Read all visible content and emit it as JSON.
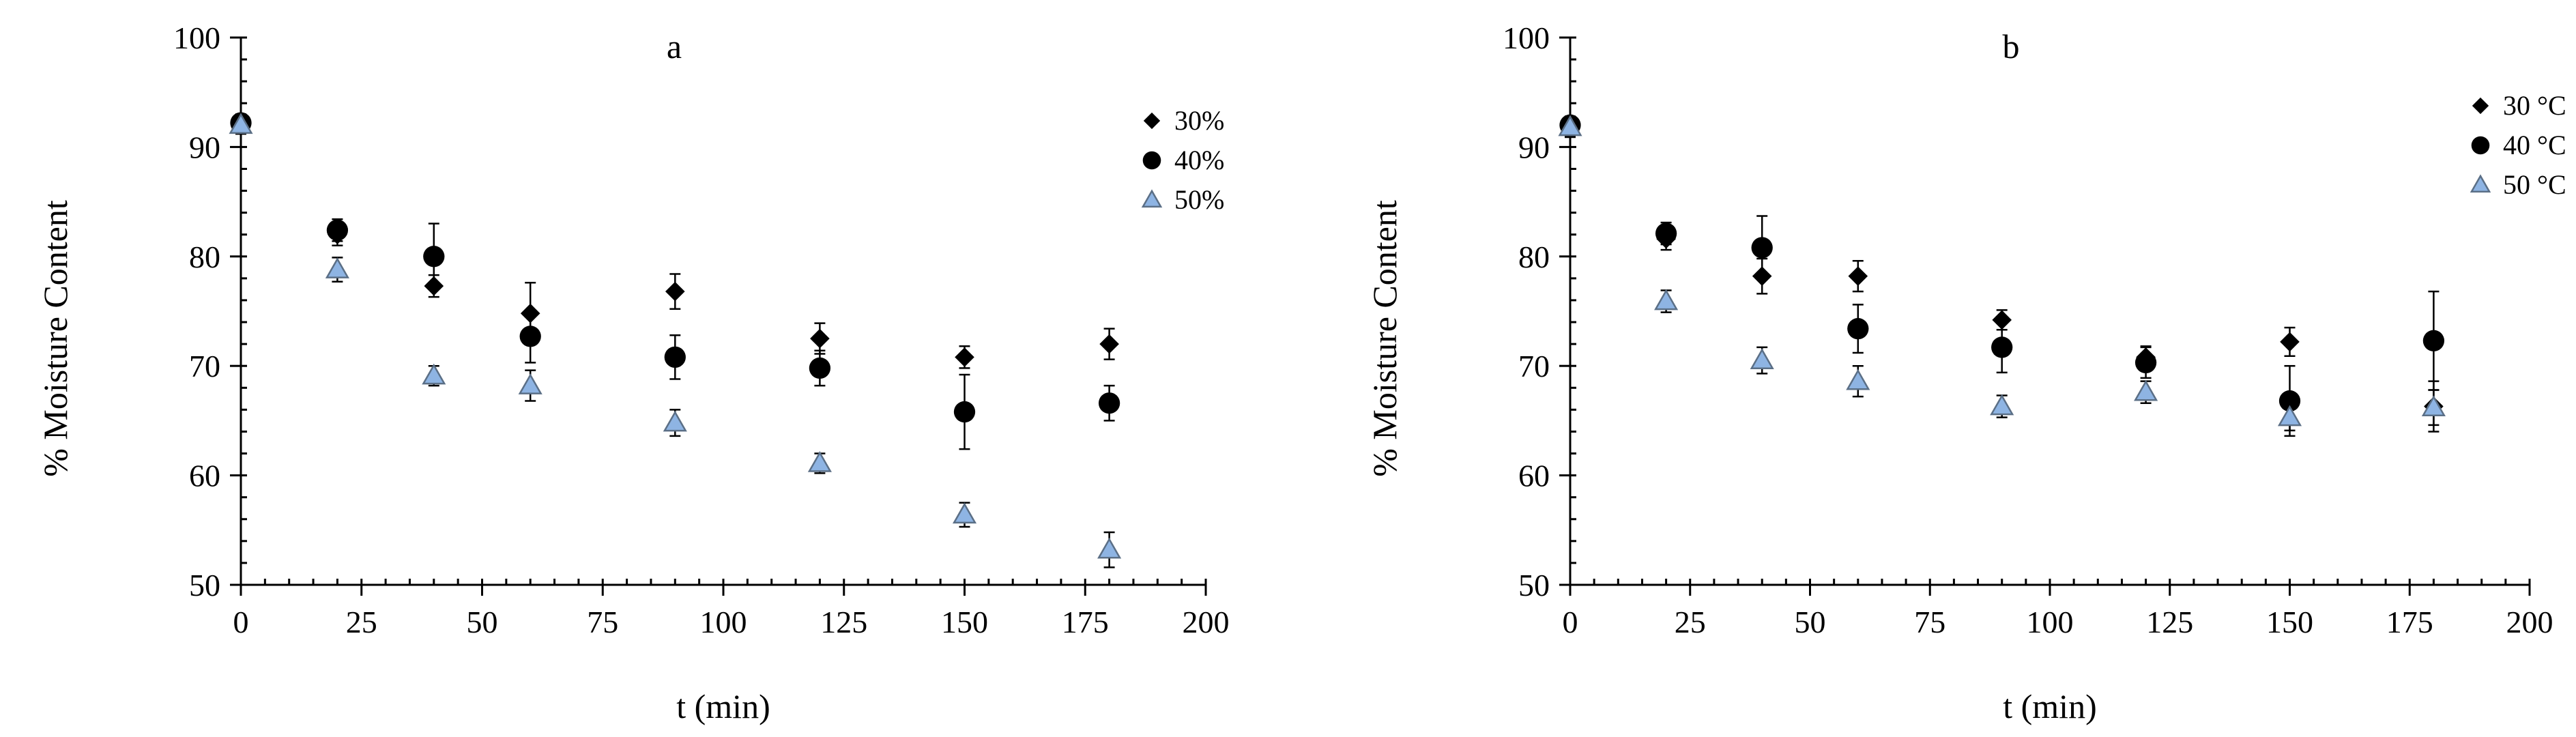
{
  "chart_data": [
    {
      "type": "scatter",
      "title": "a",
      "xlabel": "t (min)",
      "ylabel": "% Moisture Content",
      "xlim": [
        0,
        200
      ],
      "ylim": [
        50,
        100
      ],
      "xticks": [
        0,
        25,
        50,
        75,
        100,
        125,
        150,
        175,
        200
      ],
      "yticks": [
        50,
        60,
        70,
        80,
        90,
        100
      ],
      "legend_position": "top-right",
      "grid": false,
      "series": [
        {
          "name": "30%",
          "marker": "diamond",
          "color": "#000000",
          "points": [
            {
              "x": 0,
              "y": 92.0,
              "err": 0.8
            },
            {
              "x": 20,
              "y": 82.0,
              "err": 1.0
            },
            {
              "x": 40,
              "y": 77.3,
              "err": 1.0
            },
            {
              "x": 60,
              "y": 74.8,
              "err": 2.8
            },
            {
              "x": 90,
              "y": 76.8,
              "err": 1.6
            },
            {
              "x": 120,
              "y": 72.5,
              "err": 1.4
            },
            {
              "x": 150,
              "y": 70.8,
              "err": 1.0
            },
            {
              "x": 180,
              "y": 72.0,
              "err": 1.4
            }
          ]
        },
        {
          "name": "40%",
          "marker": "circle",
          "color": "#000000",
          "points": [
            {
              "x": 0,
              "y": 92.2,
              "err": 0.8
            },
            {
              "x": 20,
              "y": 82.4,
              "err": 1.0
            },
            {
              "x": 40,
              "y": 80.0,
              "err": 3.0
            },
            {
              "x": 60,
              "y": 72.7,
              "err": 2.4
            },
            {
              "x": 90,
              "y": 70.8,
              "err": 2.0
            },
            {
              "x": 120,
              "y": 69.8,
              "err": 1.6
            },
            {
              "x": 150,
              "y": 65.8,
              "err": 3.4
            },
            {
              "x": 180,
              "y": 66.6,
              "err": 1.6
            }
          ]
        },
        {
          "name": "50%",
          "marker": "triangle",
          "color": "#8eb4e3",
          "points": [
            {
              "x": 0,
              "y": 92.0,
              "err": 0.8
            },
            {
              "x": 20,
              "y": 78.8,
              "err": 1.1
            },
            {
              "x": 40,
              "y": 69.1,
              "err": 0.9
            },
            {
              "x": 60,
              "y": 68.2,
              "err": 1.4
            },
            {
              "x": 90,
              "y": 64.8,
              "err": 1.2
            },
            {
              "x": 120,
              "y": 61.1,
              "err": 0.9
            },
            {
              "x": 150,
              "y": 56.4,
              "err": 1.1
            },
            {
              "x": 180,
              "y": 53.2,
              "err": 1.6
            }
          ]
        }
      ]
    },
    {
      "type": "scatter",
      "title": "b",
      "xlabel": "t (min)",
      "ylabel": "% Moisture Content",
      "xlim": [
        0,
        200
      ],
      "ylim": [
        50,
        100
      ],
      "xticks": [
        0,
        25,
        50,
        75,
        100,
        125,
        150,
        175,
        200
      ],
      "yticks": [
        50,
        60,
        70,
        80,
        90,
        100
      ],
      "legend_position": "top-right",
      "grid": false,
      "series": [
        {
          "name": "30 °C",
          "marker": "diamond",
          "color": "#000000",
          "points": [
            {
              "x": 0,
              "y": 91.7,
              "err": 0.8
            },
            {
              "x": 20,
              "y": 81.6,
              "err": 1.0
            },
            {
              "x": 40,
              "y": 78.2,
              "err": 1.6
            },
            {
              "x": 60,
              "y": 78.2,
              "err": 1.4
            },
            {
              "x": 90,
              "y": 74.2,
              "err": 0.9
            },
            {
              "x": 120,
              "y": 70.8,
              "err": 1.0
            },
            {
              "x": 150,
              "y": 72.2,
              "err": 1.3
            },
            {
              "x": 180,
              "y": 66.3,
              "err": 2.3
            }
          ]
        },
        {
          "name": "40 °C",
          "marker": "circle",
          "color": "#000000",
          "points": [
            {
              "x": 0,
              "y": 92.0,
              "err": 0.8
            },
            {
              "x": 20,
              "y": 82.1,
              "err": 1.0
            },
            {
              "x": 40,
              "y": 80.8,
              "err": 2.9
            },
            {
              "x": 60,
              "y": 73.4,
              "err": 2.2
            },
            {
              "x": 90,
              "y": 71.7,
              "err": 2.3
            },
            {
              "x": 120,
              "y": 70.3,
              "err": 1.4
            },
            {
              "x": 150,
              "y": 66.8,
              "err": 3.2
            },
            {
              "x": 180,
              "y": 72.3,
              "err": 4.5
            }
          ]
        },
        {
          "name": "50 °C",
          "marker": "triangle",
          "color": "#8eb4e3",
          "points": [
            {
              "x": 0,
              "y": 91.8,
              "err": 0.8
            },
            {
              "x": 20,
              "y": 75.9,
              "err": 1.0
            },
            {
              "x": 40,
              "y": 70.5,
              "err": 1.2
            },
            {
              "x": 60,
              "y": 68.6,
              "err": 1.4
            },
            {
              "x": 90,
              "y": 66.3,
              "err": 1.0
            },
            {
              "x": 120,
              "y": 67.6,
              "err": 1.0
            },
            {
              "x": 150,
              "y": 65.3,
              "err": 1.2
            },
            {
              "x": 180,
              "y": 66.2,
              "err": 1.6
            }
          ]
        }
      ]
    }
  ]
}
